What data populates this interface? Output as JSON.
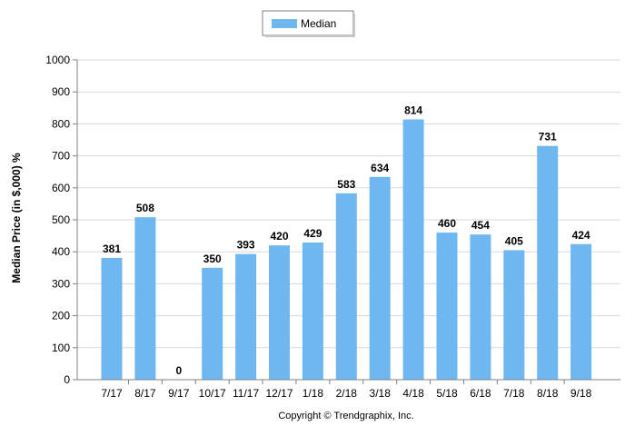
{
  "chart_data": {
    "type": "bar",
    "categories": [
      "7/17",
      "8/17",
      "9/17",
      "10/17",
      "11/17",
      "12/17",
      "1/18",
      "2/18",
      "3/18",
      "4/18",
      "5/18",
      "6/18",
      "7/18",
      "8/18",
      "9/18"
    ],
    "series": [
      {
        "name": "Median",
        "values": [
          381,
          508,
          0,
          350,
          393,
          420,
          429,
          583,
          634,
          814,
          460,
          454,
          405,
          731,
          424
        ],
        "color": "#6fb7f0"
      }
    ],
    "data_labels": [
      "381",
      "508",
      "0",
      "350",
      "393",
      "420",
      "429",
      "583",
      "634",
      "814",
      "460",
      "454",
      "405",
      "731",
      "424"
    ],
    "ylabel": "Median Price (in $,000) %",
    "xlabel": "",
    "ylim": [
      0,
      1000
    ],
    "yticks": [
      0,
      100,
      200,
      300,
      400,
      500,
      600,
      700,
      800,
      900,
      1000
    ],
    "ytick_labels": [
      "0",
      "100",
      "200",
      "300",
      "400",
      "500",
      "600",
      "700",
      "800",
      "900",
      "1000"
    ],
    "grid": true,
    "legend_position": "top-center"
  },
  "footer": {
    "copyright": "Copyright © Trendgraphix, Inc."
  }
}
